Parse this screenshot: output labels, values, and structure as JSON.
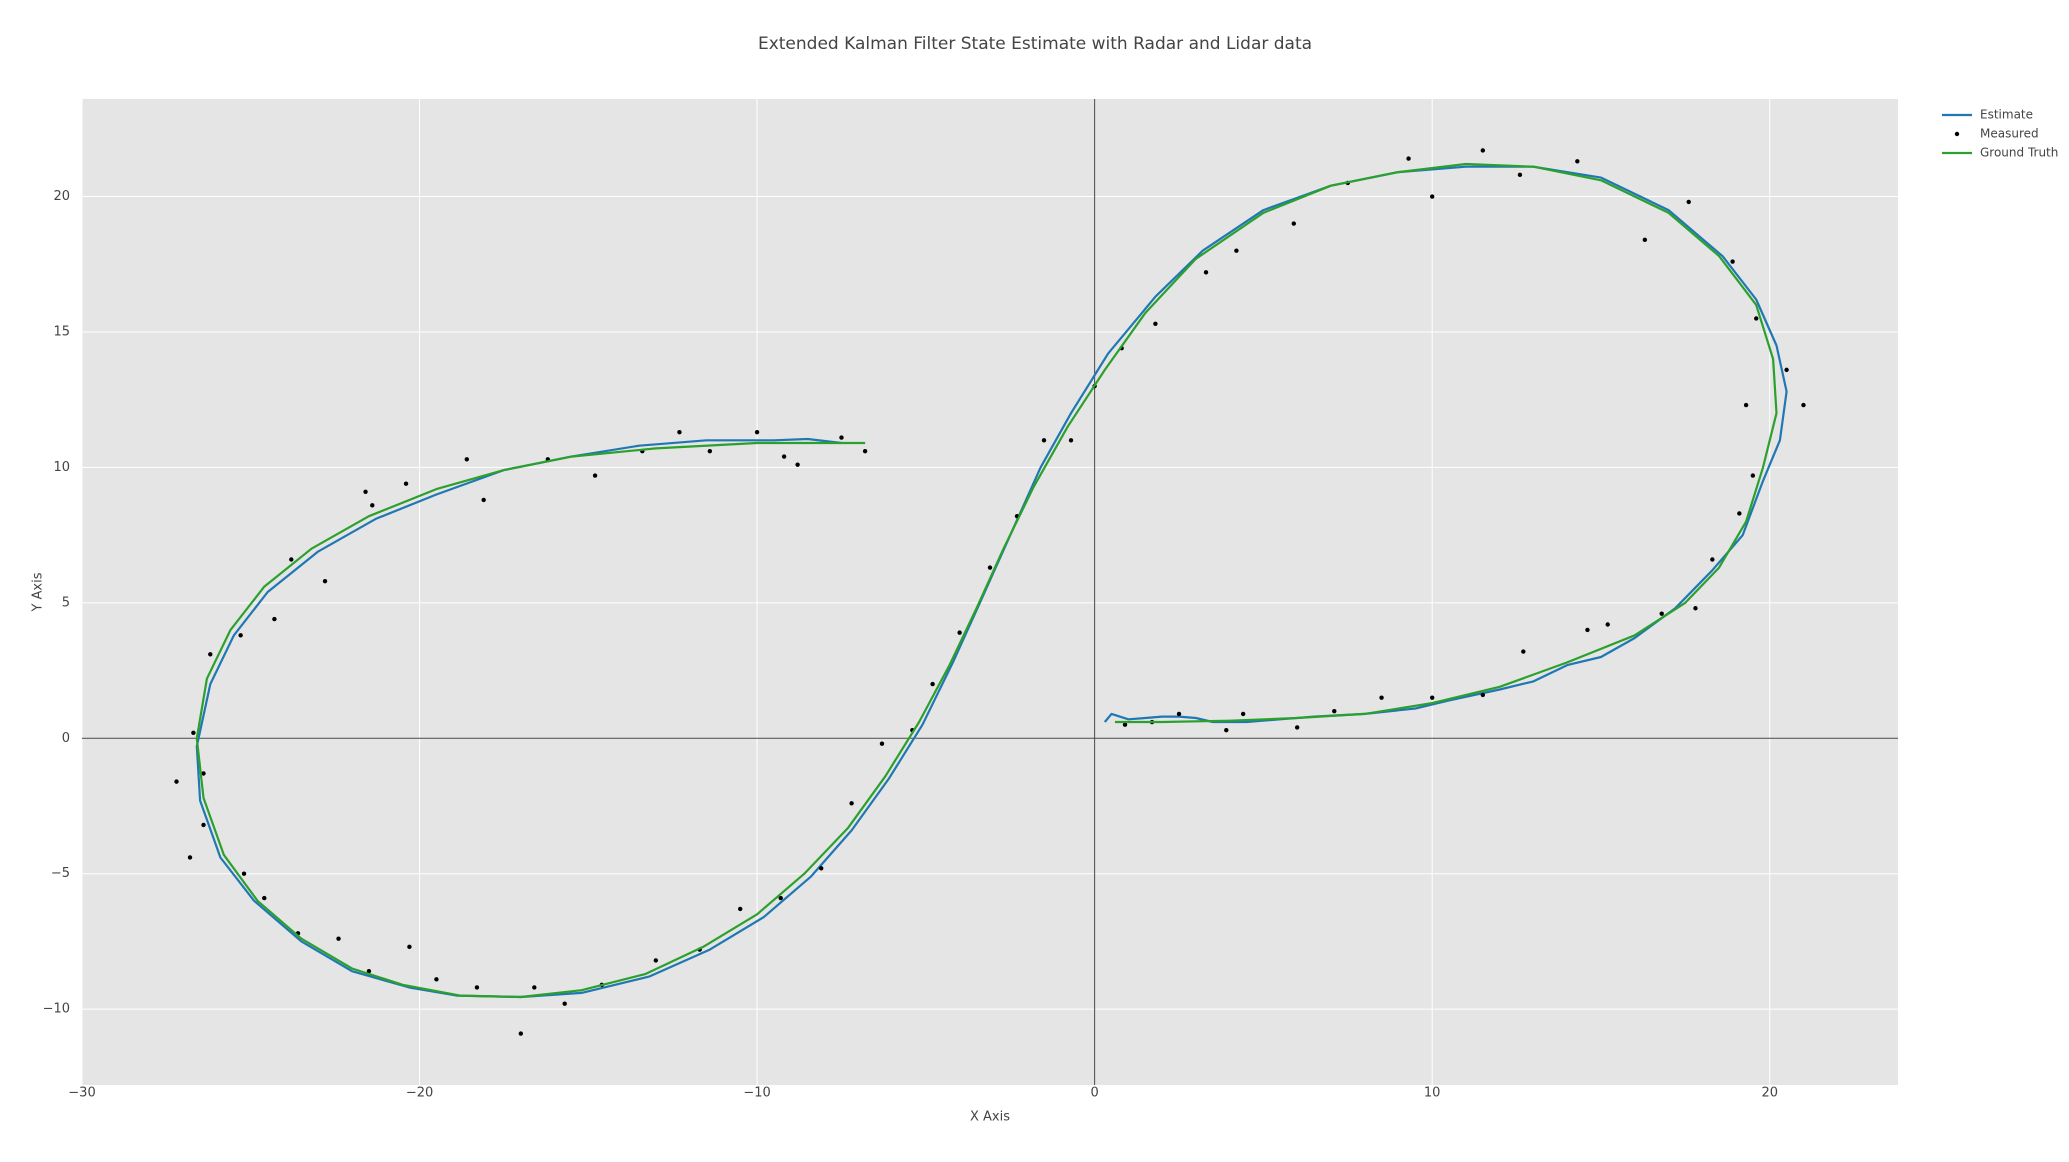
{
  "chart_data": {
    "type": "line",
    "title": "Extended Kalman Filter State Estimate with Radar and Lidar data",
    "x_label": "X Axis",
    "y_label": "Y Axis",
    "xlim": [
      -30,
      23.8
    ],
    "ylim": [
      -12.8,
      23.6
    ],
    "xticks": [
      {
        "value": -30,
        "label": "−30"
      },
      {
        "value": -20,
        "label": "−20"
      },
      {
        "value": -10,
        "label": "−10"
      },
      0,
      10,
      20
    ],
    "yticks": [
      {
        "value": -10,
        "label": "−10"
      },
      {
        "value": -5,
        "label": "−5"
      },
      0,
      5,
      10,
      15,
      20
    ],
    "grid": true,
    "zeroline": true,
    "legend": "right",
    "series": [
      {
        "name": "Estimate",
        "color": "#1f77b4",
        "mode": "lines",
        "x": [
          0.3,
          0.5,
          1.0,
          1.5,
          2.0,
          2.5,
          3.0,
          3.5,
          4.5,
          5.5,
          6.5,
          8,
          9.5,
          10.5,
          12,
          13,
          14,
          15,
          16,
          17.2,
          18.3,
          19.2,
          19.8,
          20.3,
          20.5,
          20.2,
          19.6,
          18.6,
          17,
          15,
          13,
          11,
          9,
          7,
          5,
          3.2,
          1.8,
          0.4,
          -0.7,
          -1.6,
          -2.5,
          -3.4,
          -4.2,
          -5.1,
          -6.1,
          -7.2,
          -8.4,
          -9.8,
          -11.4,
          -13.2,
          -15.2,
          -17,
          -18.9,
          -20.3,
          -22,
          -23.5,
          -24.9,
          -25.9,
          -26.5,
          -26.6,
          -26.2,
          -25.5,
          -24.5,
          -23,
          -21.3,
          -19.5,
          -17.5,
          -15.5,
          -13.5,
          -11.5,
          -9.5,
          -8.5,
          -7.5
        ],
        "values": [
          0.6,
          0.9,
          0.7,
          0.75,
          0.8,
          0.8,
          0.75,
          0.6,
          0.6,
          0.7,
          0.8,
          0.9,
          1.1,
          1.4,
          1.8,
          2.1,
          2.7,
          3.0,
          3.7,
          4.8,
          6.2,
          7.5,
          9.5,
          11,
          12.8,
          14.5,
          16.2,
          17.8,
          19.5,
          20.7,
          21.1,
          21.1,
          20.9,
          20.4,
          19.5,
          18,
          16.3,
          14.2,
          12,
          10,
          7.5,
          5,
          2.8,
          0.5,
          -1.5,
          -3.4,
          -5.1,
          -6.6,
          -7.8,
          -8.8,
          -9.4,
          -9.55,
          -9.5,
          -9.2,
          -8.6,
          -7.5,
          -6,
          -4.4,
          -2.3,
          -0.3,
          2,
          3.8,
          5.4,
          6.9,
          8.1,
          9,
          9.9,
          10.4,
          10.8,
          11,
          11,
          11.05,
          10.9
        ]
      },
      {
        "name": "Measured",
        "color": "#000000",
        "mode": "markers",
        "x": [
          0.9,
          1.7,
          2.5,
          3.9,
          4.4,
          6,
          7.1,
          8.5,
          10,
          11.5,
          12.7,
          14.6,
          15.2,
          16.8,
          17.8,
          18.3,
          19.1,
          19.5,
          19.3,
          20.5,
          21,
          19.6,
          18.9,
          17.6,
          16.3,
          14.3,
          12.6,
          11.5,
          10,
          9.3,
          7.5,
          5.9,
          4.2,
          3.3,
          1.8,
          0.8,
          0,
          -0.7,
          -1.5,
          -2.3,
          -3.1,
          -4,
          -4.8,
          -5.4,
          -6.3,
          -7.2,
          -8.1,
          -9.3,
          -10.5,
          -11.7,
          -13,
          -14.6,
          -15.7,
          -16.6,
          -17,
          -18.3,
          -19.5,
          -20.3,
          -21.5,
          -22.4,
          -23.6,
          -24.6,
          -25.2,
          -26.4,
          -26.8,
          -27.2,
          -26.4,
          -26.7,
          -26.2,
          -25.3,
          -24.3,
          -23.8,
          -22.8,
          -21.4,
          -21.6,
          -20.4,
          -18.6,
          -18.1,
          -16.2,
          -14.8,
          -13.4,
          -12.3,
          -11.4,
          -10,
          -9.2,
          -8.8,
          -7.5,
          -6.8
        ],
        "values": [
          0.5,
          0.6,
          0.9,
          0.3,
          0.9,
          0.4,
          1,
          1.5,
          1.5,
          1.6,
          3.2,
          4,
          4.2,
          4.6,
          4.8,
          6.6,
          8.3,
          9.7,
          12.3,
          13.6,
          12.3,
          15.5,
          17.6,
          19.8,
          18.4,
          21.3,
          20.8,
          21.7,
          20,
          21.4,
          20.5,
          19,
          18,
          17.2,
          15.3,
          14.4,
          13,
          11,
          11,
          8.2,
          6.3,
          3.9,
          2,
          0.3,
          -0.2,
          -2.4,
          -4.8,
          -5.9,
          -6.3,
          -7.8,
          -8.2,
          -9.1,
          -9.8,
          -9.2,
          -10.9,
          -9.2,
          -8.9,
          -7.7,
          -8.6,
          -7.4,
          -7.2,
          -5.9,
          -5,
          -3.2,
          -4.4,
          -1.6,
          -1.3,
          0.2,
          3.1,
          3.8,
          4.4,
          6.6,
          5.8,
          8.6,
          9.1,
          9.4,
          10.3,
          8.8,
          10.3,
          9.7,
          10.6,
          11.3,
          10.6,
          11.3,
          10.4,
          10.1,
          11.1,
          10.6
        ]
      },
      {
        "name": "Ground Truth",
        "color": "#2ca02c",
        "mode": "lines",
        "x": [
          0.6,
          2,
          4,
          6,
          8,
          10,
          12,
          14,
          16,
          17.5,
          18.5,
          19.3,
          19.8,
          20.2,
          20.1,
          19.6,
          18.5,
          17,
          15,
          13,
          11,
          9,
          7,
          5,
          3,
          1.5,
          0.3,
          -0.8,
          -1.8,
          -2.7,
          -3.5,
          -4.3,
          -5.2,
          -6.2,
          -7.3,
          -8.6,
          -10,
          -11.6,
          -13.3,
          -15.2,
          -17,
          -18.8,
          -20.5,
          -22,
          -23.5,
          -24.8,
          -25.8,
          -26.4,
          -26.6,
          -26.3,
          -25.6,
          -24.6,
          -23.2,
          -21.5,
          -19.5,
          -17.5,
          -15.5,
          -13,
          -10,
          -6.8
        ],
        "values": [
          0.6,
          0.6,
          0.65,
          0.75,
          0.9,
          1.3,
          1.9,
          2.8,
          3.8,
          5,
          6.3,
          8,
          10,
          12,
          14,
          16,
          17.8,
          19.4,
          20.6,
          21.1,
          21.2,
          20.9,
          20.4,
          19.4,
          17.7,
          15.7,
          13.6,
          11.5,
          9.3,
          7,
          4.8,
          2.7,
          0.6,
          -1.4,
          -3.3,
          -5,
          -6.5,
          -7.7,
          -8.7,
          -9.3,
          -9.55,
          -9.5,
          -9.1,
          -8.5,
          -7.4,
          -6,
          -4.3,
          -2.2,
          0,
          2.2,
          4,
          5.6,
          7,
          8.2,
          9.2,
          9.9,
          10.4,
          10.7,
          10.9,
          10.9
        ]
      }
    ]
  }
}
